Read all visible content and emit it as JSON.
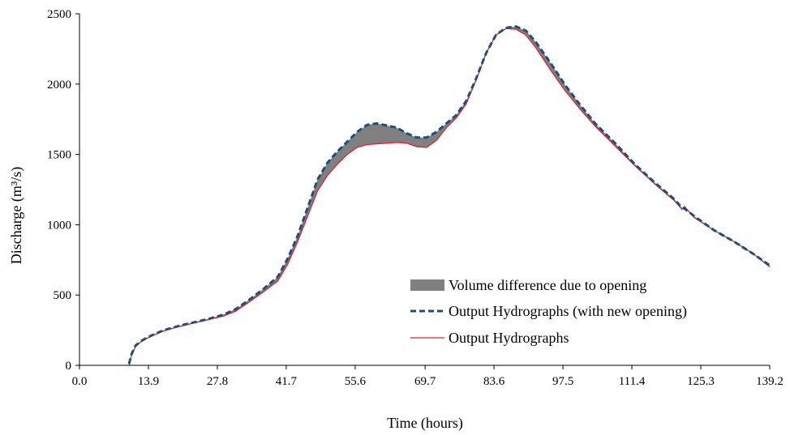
{
  "chart_data": {
    "type": "line",
    "xlabel": "Time (hours)",
    "ylabel": "Discharge (m³/s)",
    "xlim": [
      0,
      139.2
    ],
    "ylim": [
      0,
      2500
    ],
    "x_ticks": [
      "0.0",
      "13.9",
      "27.8",
      "41.7",
      "55.6",
      "69.7",
      "83.6",
      "97.5",
      "111.4",
      "125.3",
      "139.2"
    ],
    "y_ticks": [
      "0",
      "500",
      "1000",
      "1500",
      "2000",
      "2500"
    ],
    "grid": false,
    "legend_position": "bottom-right",
    "series": [
      {
        "name": "Output Hydrographs (with new opening)",
        "style": "dashed",
        "color": "#1f4e79",
        "x": [
          10.0,
          10.5,
          11.3,
          12.3,
          13.5,
          15.0,
          17.0,
          20.0,
          23.0,
          26.0,
          29.0,
          31.5,
          34.0,
          37.0,
          40.0,
          42.0,
          44.0,
          46.0,
          48.0,
          50.0,
          52.0,
          54.0,
          56.0,
          58.0,
          60.0,
          62.0,
          64.0,
          66.0,
          68.0,
          70.0,
          72.0,
          74.0,
          76.0,
          78.0,
          80.0,
          82.0,
          84.0,
          86.0,
          88.0,
          90.0,
          92.0,
          95.0,
          98.0,
          101.0,
          104.0,
          108.0,
          112.0,
          116.0,
          120.0,
          121.5,
          122.0,
          124.0,
          128.0,
          132.0,
          136.0,
          139.2
        ],
        "y": [
          10,
          80,
          140,
          170,
          195,
          220,
          250,
          280,
          305,
          330,
          360,
          400,
          460,
          540,
          630,
          760,
          920,
          1120,
          1320,
          1440,
          1520,
          1590,
          1660,
          1710,
          1720,
          1705,
          1690,
          1650,
          1620,
          1620,
          1660,
          1720,
          1780,
          1880,
          2040,
          2220,
          2350,
          2400,
          2410,
          2380,
          2300,
          2150,
          1990,
          1850,
          1720,
          1580,
          1430,
          1300,
          1180,
          1120,
          1115,
          1060,
          960,
          880,
          790,
          710
        ]
      },
      {
        "name": "Output Hydrographs",
        "style": "solid",
        "color": "#e8212a",
        "x": [
          10.0,
          10.5,
          11.3,
          12.3,
          13.5,
          15.0,
          17.0,
          20.0,
          23.0,
          26.0,
          29.0,
          31.5,
          34.0,
          37.0,
          40.0,
          42.0,
          44.0,
          46.0,
          48.0,
          50.0,
          52.0,
          54.0,
          56.0,
          58.0,
          60.0,
          62.0,
          64.0,
          66.0,
          68.0,
          70.0,
          72.0,
          74.0,
          76.0,
          78.0,
          80.0,
          82.0,
          84.0,
          86.0,
          88.0,
          90.0,
          92.0,
          95.0,
          98.0,
          101.0,
          104.0,
          108.0,
          112.0,
          116.0,
          120.0,
          121.5,
          122.0,
          124.0,
          128.0,
          132.0,
          136.0,
          139.2
        ],
        "y": [
          0,
          70,
          135,
          165,
          190,
          215,
          245,
          275,
          300,
          325,
          350,
          385,
          445,
          520,
          600,
          720,
          880,
          1060,
          1240,
          1350,
          1430,
          1500,
          1550,
          1570,
          1575,
          1580,
          1585,
          1580,
          1555,
          1550,
          1600,
          1690,
          1760,
          1860,
          2030,
          2220,
          2350,
          2395,
          2390,
          2350,
          2260,
          2100,
          1950,
          1820,
          1700,
          1560,
          1420,
          1290,
          1170,
          1110,
          1130,
          1050,
          960,
          880,
          790,
          700
        ]
      }
    ],
    "area_name": "Volume difference due to opening",
    "area_color": "#808080"
  }
}
